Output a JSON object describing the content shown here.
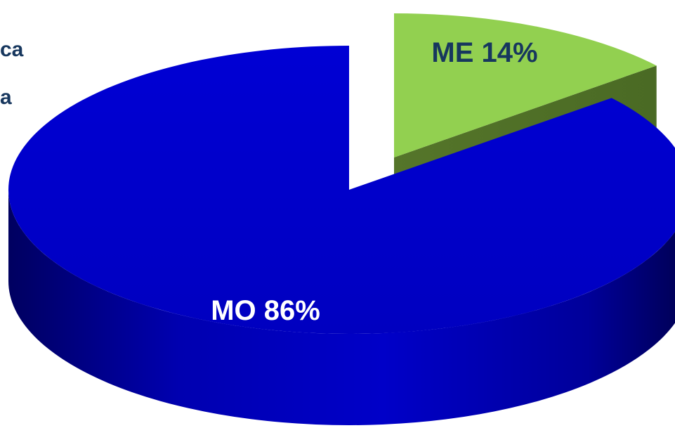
{
  "fragments": [
    "ca",
    "a"
  ],
  "chart_data": {
    "type": "pie",
    "style": "3d-exploded",
    "title": "",
    "slices": [
      {
        "name": "MO",
        "value": 86,
        "label": "MO 86%",
        "color": "#0000cc",
        "exploded": false
      },
      {
        "name": "ME",
        "value": 14,
        "label": "ME 14%",
        "color": "#92d050",
        "exploded": true
      }
    ],
    "colors": {
      "label_text": "#17375e"
    }
  }
}
